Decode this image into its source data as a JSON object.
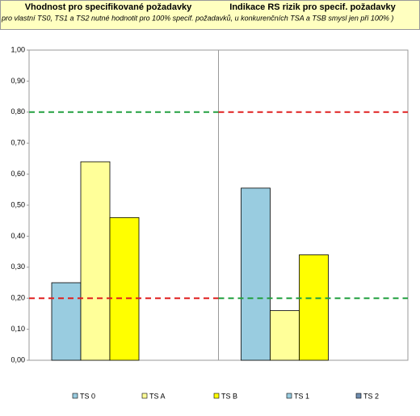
{
  "chart_data": {
    "type": "bar",
    "title": "Vhodnost pro specifikované požadavky",
    "title_right": "Indikace RS rizik pro specif. požadavky",
    "subtitle": "pro vlastní TS0, TS1 a TS2 nutné hodnotit pro 100% specif. požadavků,  u konkurenčních TSA a TSB smysl jen při 100% )",
    "categories": [
      null,
      null
    ],
    "series": [
      {
        "name": "TS 0",
        "color": "#99cce0",
        "values": [
          0.25,
          null
        ]
      },
      {
        "name": "TS A",
        "color": "#ffff99",
        "values": [
          0.64,
          0.16
        ]
      },
      {
        "name": "TS B",
        "color": "#ffff00",
        "values": [
          0.46,
          0.34
        ]
      },
      {
        "name": "TS 1",
        "color": "#99cce0",
        "values": [
          null,
          0.555
        ]
      },
      {
        "name": "TS 2",
        "color": "#6f8db0",
        "values": [
          null,
          null
        ]
      }
    ],
    "ylim": [
      0,
      1
    ],
    "yticks": [
      {
        "value": 0,
        "label": "0,00"
      },
      {
        "value": 0.1,
        "label": "0,10"
      },
      {
        "value": 0.2,
        "label": "0,20"
      },
      {
        "value": 0.3,
        "label": "0,30"
      },
      {
        "value": 0.4,
        "label": "0,40"
      },
      {
        "value": 0.5,
        "label": "0,50"
      },
      {
        "value": 0.6,
        "label": "0,60"
      },
      {
        "value": 0.7,
        "label": "0,70"
      },
      {
        "value": 0.8,
        "label": "0,80"
      },
      {
        "value": 0.9,
        "label": "0,90"
      },
      {
        "value": 1,
        "label": "1,00"
      }
    ],
    "reference_lines": [
      {
        "value": 0.8,
        "colors": [
          "#22a040",
          "#e02020"
        ]
      },
      {
        "value": 0.2,
        "colors": [
          "#e02020",
          "#22a040"
        ]
      }
    ],
    "legend": "bottom"
  }
}
